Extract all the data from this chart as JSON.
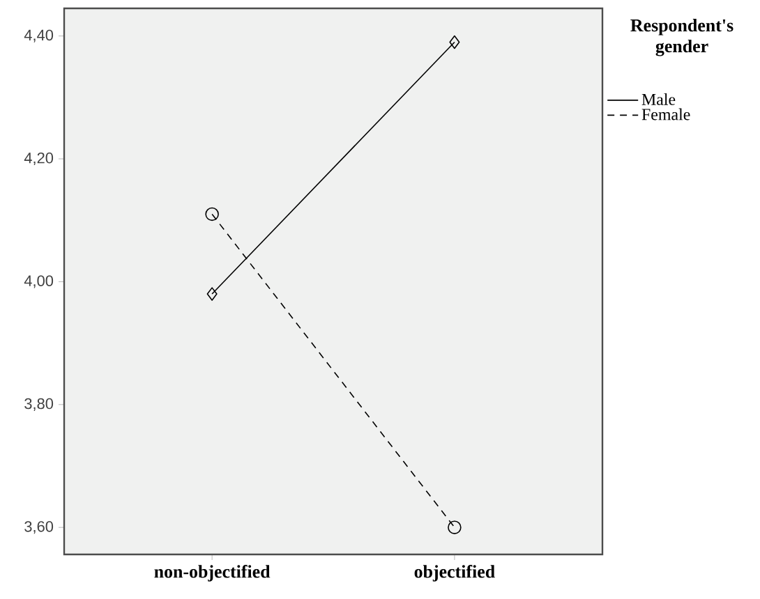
{
  "chart_data": {
    "type": "line",
    "legend_title": "Respondent's gender",
    "categories": [
      "non-objectified",
      "objectified"
    ],
    "series": [
      {
        "name": "Male",
        "color": "#000000",
        "values": [
          3.98,
          4.39
        ],
        "marker": "diamond",
        "line_style": "solid"
      },
      {
        "name": "Female",
        "color": "#000000",
        "values": [
          4.11,
          3.6
        ],
        "marker": "circle",
        "line_style": "dashed"
      }
    ],
    "ylim": [
      3.556,
      4.445
    ],
    "yticks": [
      {
        "value": 3.6,
        "label": "3,60"
      },
      {
        "value": 3.8,
        "label": "3,80"
      },
      {
        "value": 4.0,
        "label": "4,00"
      },
      {
        "value": 4.2,
        "label": "4,20"
      },
      {
        "value": 4.4,
        "label": "4,40"
      }
    ],
    "grid": false,
    "legend": "right"
  }
}
